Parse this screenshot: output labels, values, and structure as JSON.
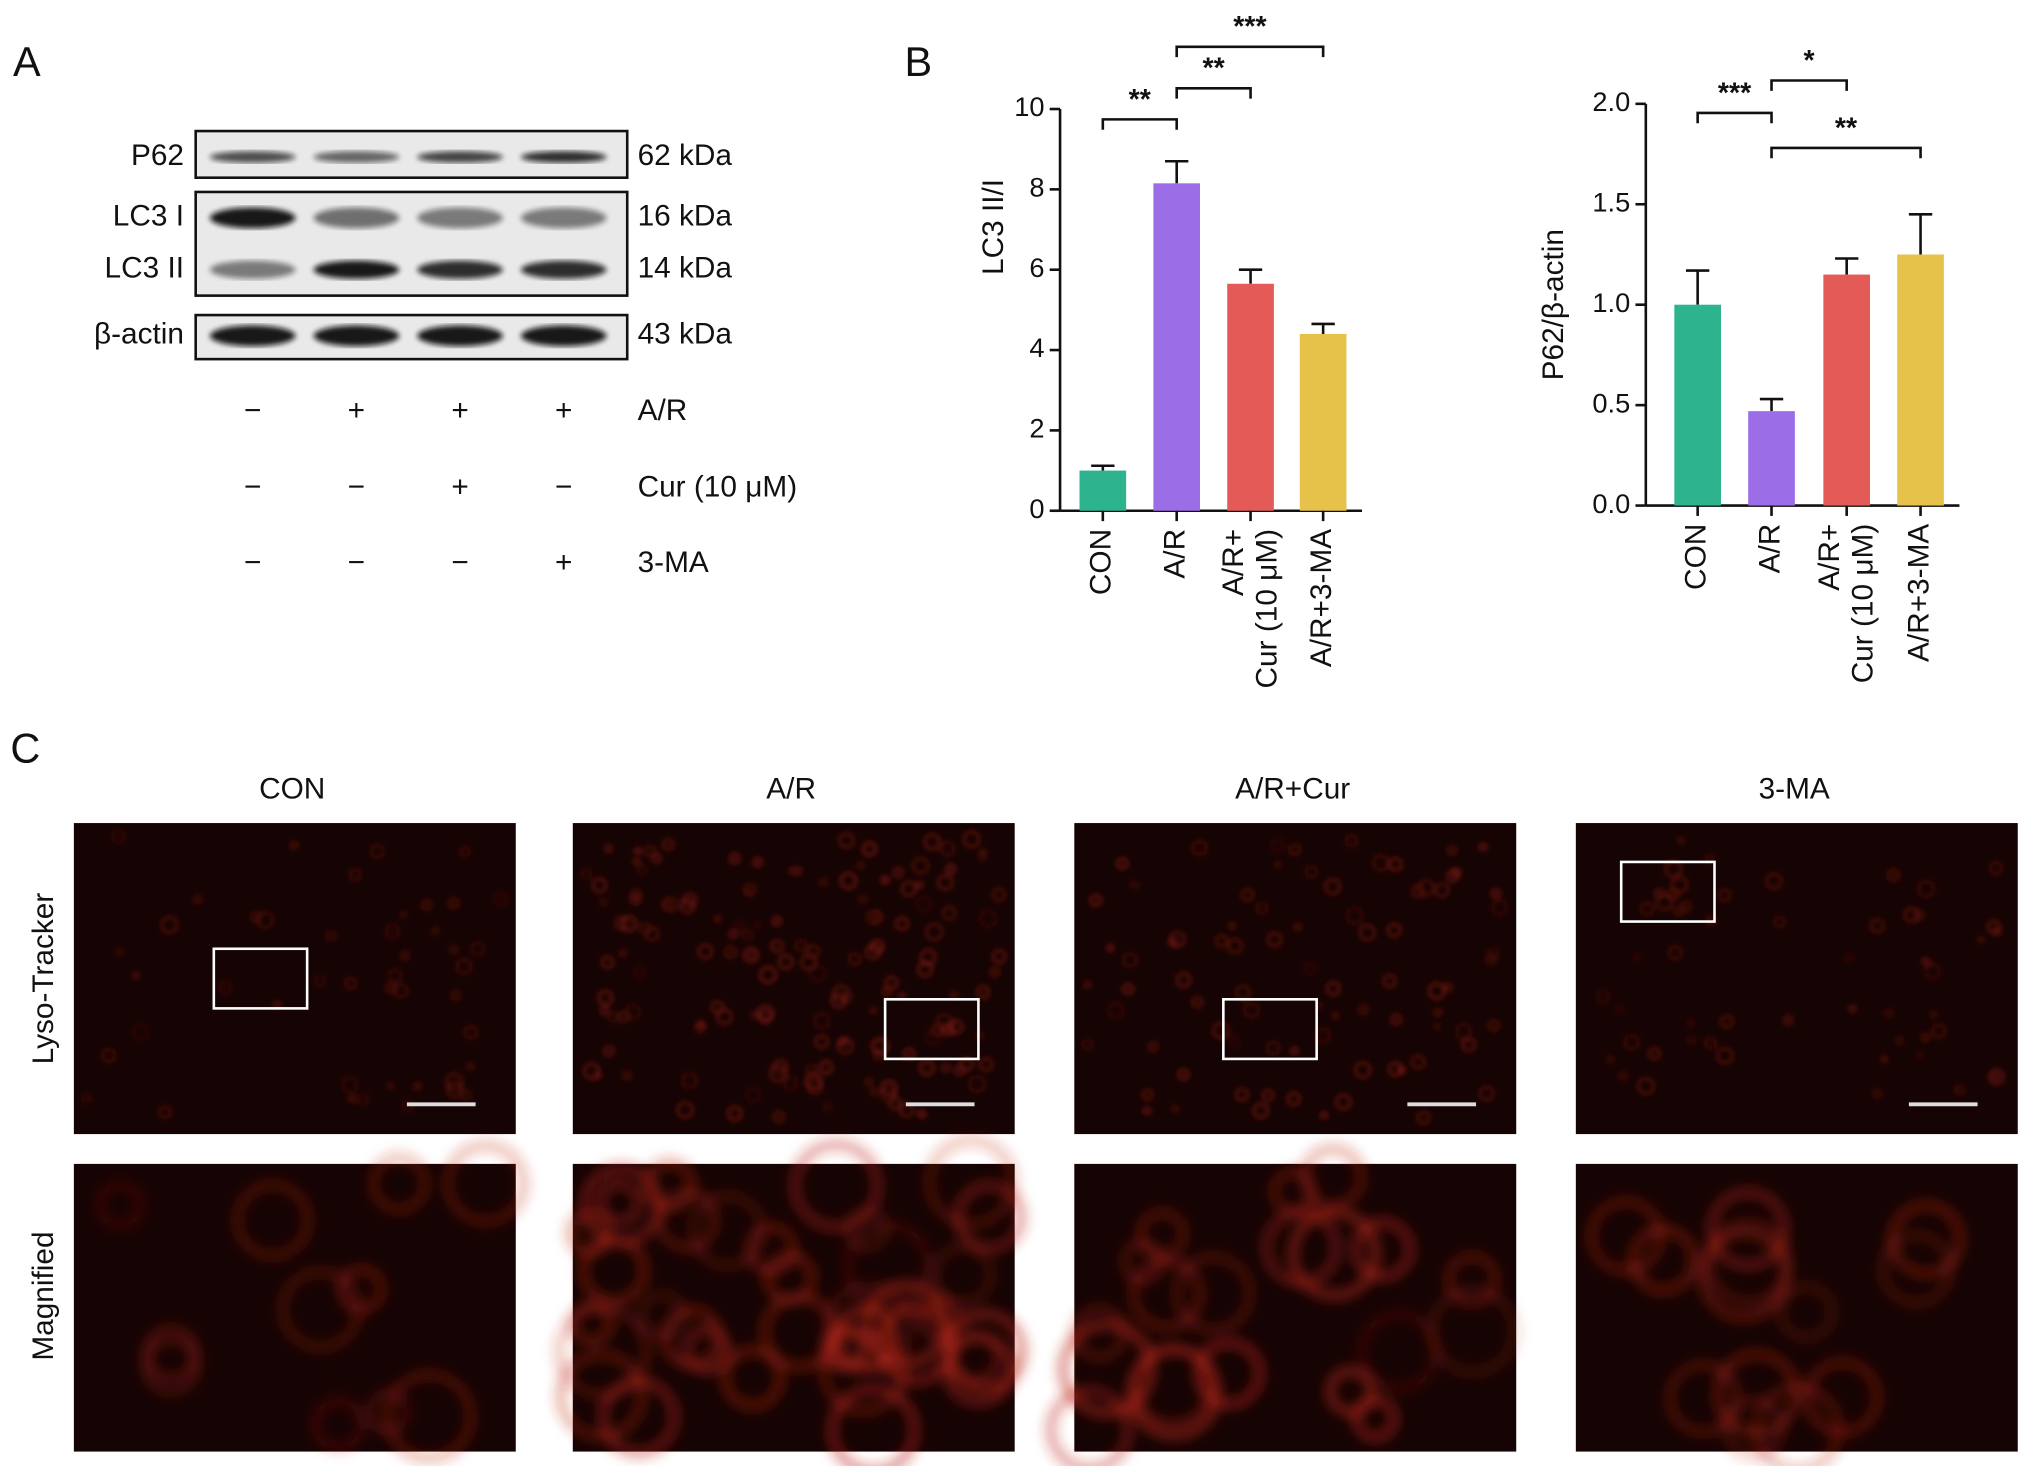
{
  "panels": [
    "A",
    "B",
    "C"
  ],
  "blot": {
    "rows": [
      {
        "label": "P62",
        "size": "62 kDa"
      },
      {
        "label": "LC3 I",
        "size": "16 kDa"
      },
      {
        "label": "LC3 II",
        "size": "14 kDa"
      },
      {
        "label": "β-actin",
        "size": "43 kDa"
      }
    ],
    "treatments": [
      {
        "label": "A/R",
        "signs": [
          "−",
          "+",
          "+",
          "+"
        ]
      },
      {
        "label": "Cur (10 μM)",
        "signs": [
          "−",
          "−",
          "+",
          "−"
        ]
      },
      {
        "label": "3-MA",
        "signs": [
          "−",
          "−",
          "−",
          "+"
        ]
      }
    ]
  },
  "chart_data": [
    {
      "type": "bar",
      "ylabel": "LC3 II/I",
      "categories": [
        "CON",
        "A/R",
        [
          "A/R+",
          "Cur (10 μM)"
        ],
        "A/R+3-MA"
      ],
      "values": [
        1.0,
        8.15,
        5.65,
        4.4
      ],
      "errors": [
        0.12,
        0.55,
        0.35,
        0.25
      ],
      "colors": [
        "#2db38e",
        "#9b6de6",
        "#e45a56",
        "#e6c24b"
      ],
      "ylim": [
        0,
        10
      ],
      "yticks": [
        0,
        2,
        4,
        6,
        8,
        10
      ],
      "brackets": [
        {
          "label": "**",
          "from": 0,
          "to": 1
        },
        {
          "label": "**",
          "from": 1,
          "to": 2
        },
        {
          "label": "***",
          "from": 1,
          "to": 3
        }
      ]
    },
    {
      "type": "bar",
      "ylabel": "P62/β-actin",
      "categories": [
        "CON",
        "A/R",
        [
          "A/R+",
          "Cur (10 μM)"
        ],
        "A/R+3-MA"
      ],
      "values": [
        1.0,
        0.47,
        1.15,
        1.25
      ],
      "errors": [
        0.17,
        0.06,
        0.08,
        0.2
      ],
      "colors": [
        "#2db38e",
        "#9b6de6",
        "#e45a56",
        "#e6c24b"
      ],
      "ylim": [
        0,
        2
      ],
      "yticks": [
        {
          "value": 0,
          "label": "0.0"
        },
        {
          "value": 0.5,
          "label": "0.5"
        },
        {
          "value": 1,
          "label": "1.0"
        },
        {
          "value": 1.5,
          "label": "1.5"
        },
        {
          "value": 2,
          "label": "2.0"
        }
      ],
      "brackets": [
        {
          "label": "***",
          "from": 0,
          "to": 1
        },
        {
          "label": "*",
          "from": 1,
          "to": 2
        },
        {
          "label": "**",
          "from": 1,
          "to": 3
        }
      ]
    }
  ],
  "micrographs": {
    "columns": [
      "CON",
      "A/R",
      "A/R+Cur",
      "3-MA"
    ],
    "rows": [
      "Lyso-Tracker",
      "Magnified"
    ]
  }
}
